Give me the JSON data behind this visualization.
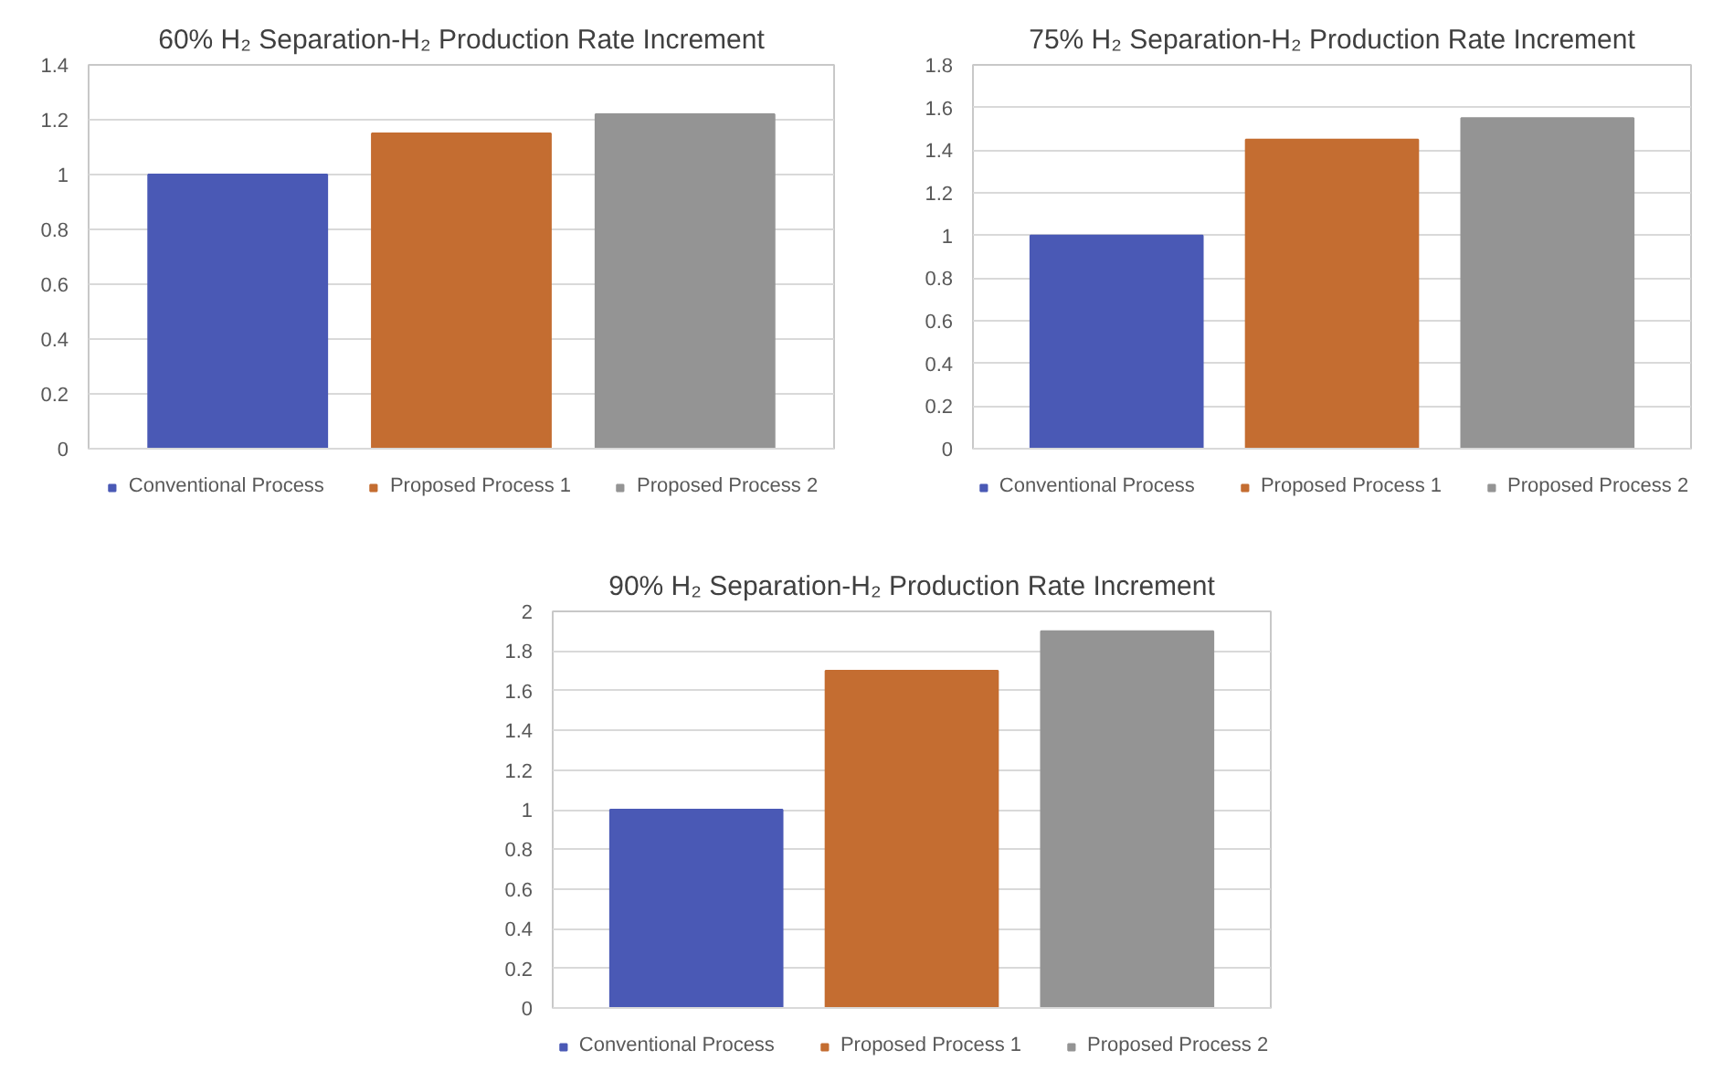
{
  "chart_data": [
    {
      "type": "bar",
      "title": "60% H₂ Separation-H₂ Production Rate Increment",
      "categories": [
        null
      ],
      "ylim": [
        0,
        1.4
      ],
      "yticks": [
        0,
        0.2,
        0.4,
        0.6,
        0.8,
        1,
        1.2,
        1.4
      ],
      "grid": "y",
      "legend": "bottom",
      "tick_labels": "y",
      "series": [
        {
          "name": "Conventional Process",
          "color": "#4a59b5",
          "values": [
            1
          ]
        },
        {
          "name": "Proposed Process 1",
          "color": "#c46d31",
          "values": [
            1.15
          ]
        },
        {
          "name": "Proposed Process 2",
          "color": "#949494",
          "values": [
            1.22
          ]
        }
      ]
    },
    {
      "type": "bar",
      "title": "75% H₂ Separation-H₂ Production Rate Increment",
      "categories": [
        null
      ],
      "ylim": [
        0,
        1.8
      ],
      "yticks": [
        0,
        0.2,
        0.4,
        0.6,
        0.8,
        1,
        1.2,
        1.4,
        1.6,
        1.8
      ],
      "grid": "y",
      "legend": "bottom",
      "tick_labels": "y",
      "series": [
        {
          "name": "Conventional Process",
          "color": "#4a59b5",
          "values": [
            1
          ]
        },
        {
          "name": "Proposed Process 1",
          "color": "#c46d31",
          "values": [
            1.45
          ]
        },
        {
          "name": "Proposed Process 2",
          "color": "#949494",
          "values": [
            1.55
          ]
        }
      ]
    },
    {
      "type": "bar",
      "title": "90% H₂ Separation-H₂ Production Rate Increment",
      "categories": [
        null
      ],
      "ylim": [
        0,
        2
      ],
      "yticks": [
        0,
        0.2,
        0.4,
        0.6,
        0.8,
        1,
        1.2,
        1.4,
        1.6,
        1.8,
        2
      ],
      "grid": "y",
      "legend": "bottom",
      "tick_labels": "y",
      "series": [
        {
          "name": "Conventional Process",
          "color": "#4a59b5",
          "values": [
            1
          ]
        },
        {
          "name": "Proposed Process 1",
          "color": "#c46d31",
          "values": [
            1.7
          ]
        },
        {
          "name": "Proposed Process 2",
          "color": "#949494",
          "values": [
            1.9
          ]
        }
      ]
    }
  ]
}
